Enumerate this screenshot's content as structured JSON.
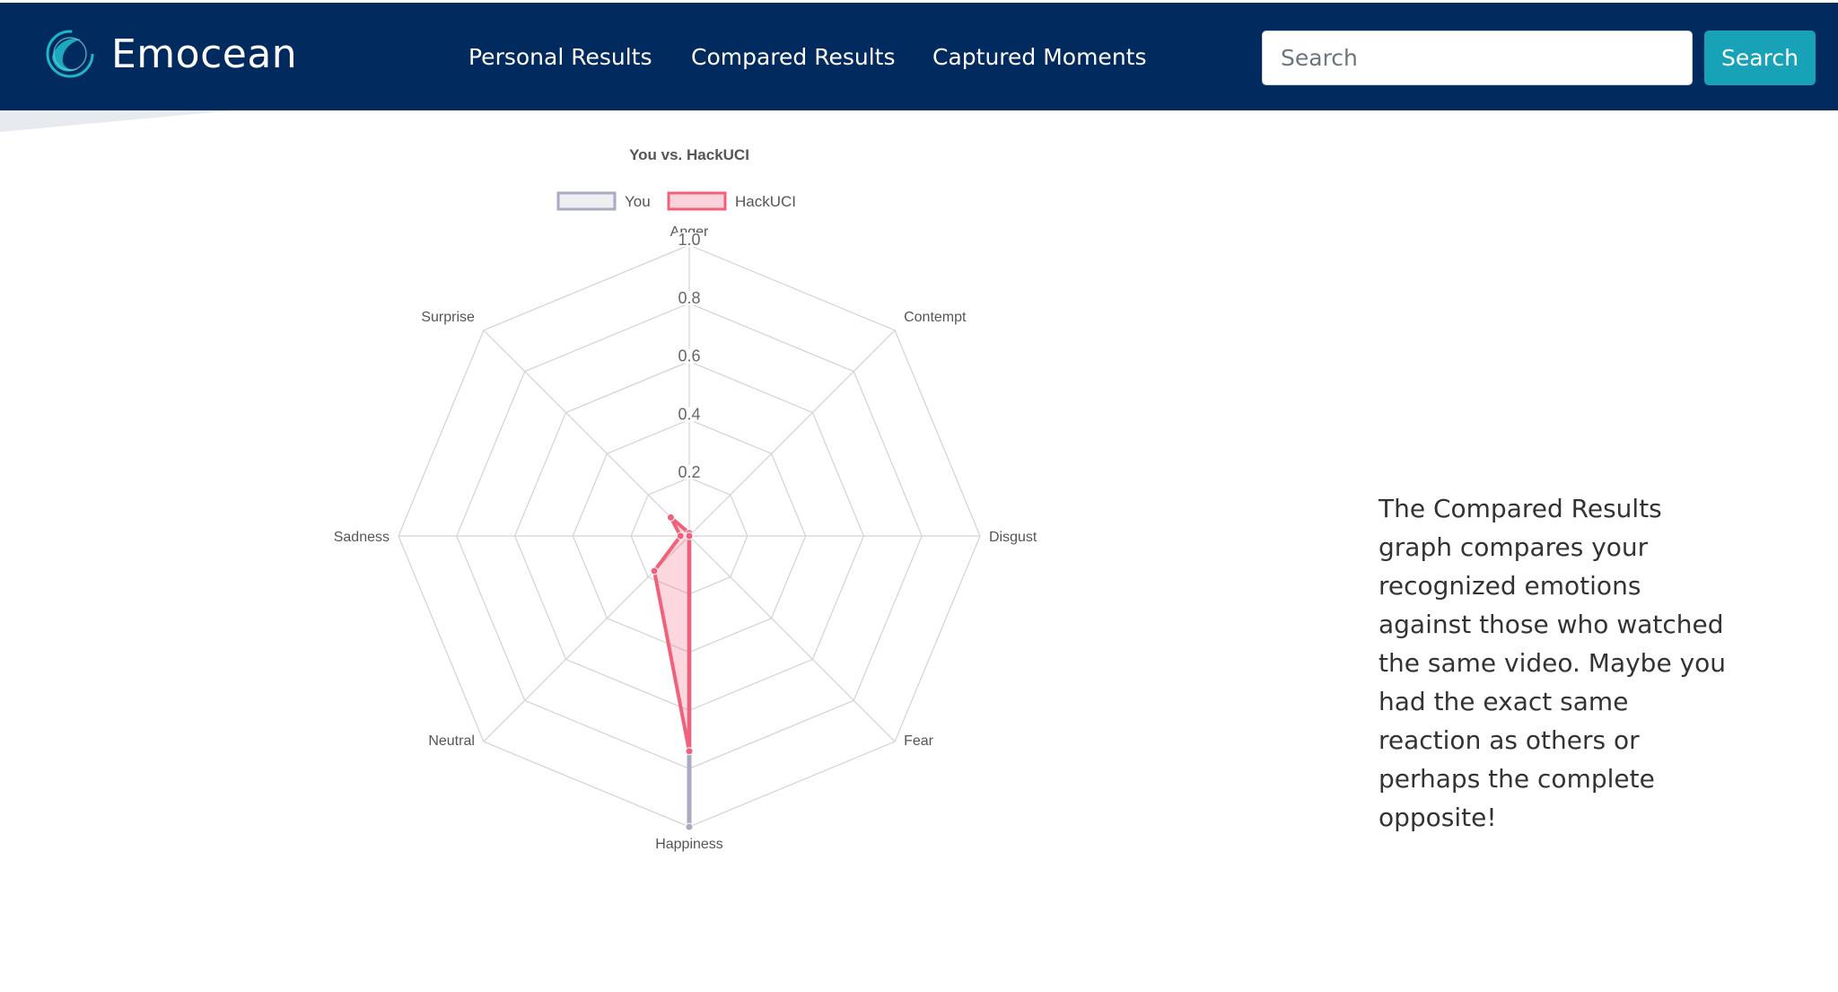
{
  "brand": {
    "name": "Emocean",
    "logo_icon": "wave-circle-icon"
  },
  "nav": {
    "links": [
      {
        "label": "Personal Results"
      },
      {
        "label": "Compared Results"
      },
      {
        "label": "Captured Moments"
      }
    ]
  },
  "search": {
    "placeholder": "Search",
    "value": "",
    "button_label": "Search"
  },
  "colors": {
    "navbar": "#012a5e",
    "search_button": "#17a2b8",
    "series_you": "#a8abc1",
    "series_hackuci": "#f2617c"
  },
  "description": "The Compared Results graph compares your recognized emotions against those who watched the same video. Maybe you had the exact same reaction as others or perhaps the complete opposite!",
  "chart_data": {
    "type": "radar",
    "title": "You vs. HackUCI",
    "legend_position": "top",
    "axes": [
      "Anger",
      "Contempt",
      "Disgust",
      "Fear",
      "Happiness",
      "Neutral",
      "Sadness",
      "Surprise"
    ],
    "range": [
      0,
      1
    ],
    "ticks": [
      "0.2",
      "0.4",
      "0.6",
      "0.8",
      "1.0"
    ],
    "tick_values": [
      0.2,
      0.4,
      0.6,
      0.8,
      1.0
    ],
    "series": [
      {
        "name": "You",
        "values": [
          0,
          0,
          0,
          0,
          1.0,
          0,
          0,
          0
        ]
      },
      {
        "name": "HackUCI",
        "values": [
          0.01,
          0.0,
          0.0,
          0.0,
          0.74,
          0.17,
          0.03,
          0.09
        ]
      }
    ]
  }
}
